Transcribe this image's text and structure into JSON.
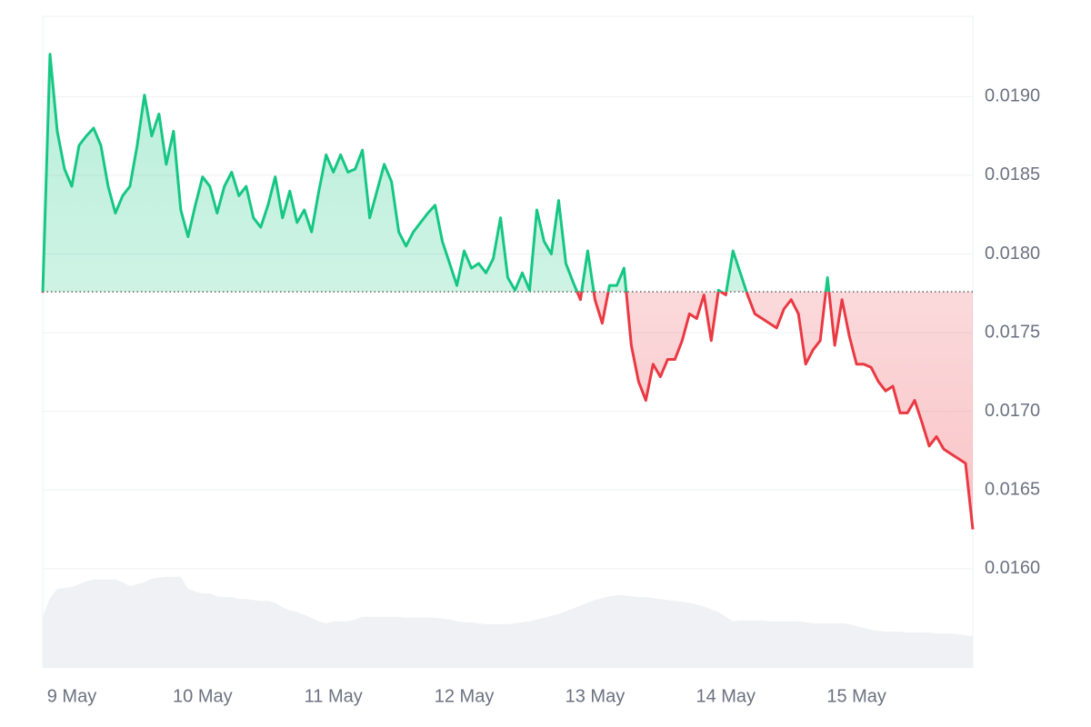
{
  "chart_data": {
    "type": "line",
    "categories": [
      null,
      null,
      null,
      null,
      "9 May",
      null,
      null,
      null,
      null,
      null,
      null,
      null,
      null,
      null,
      null,
      null,
      null,
      null,
      null,
      null,
      null,
      null,
      "10 May",
      null,
      null,
      null,
      null,
      null,
      null,
      null,
      null,
      null,
      null,
      null,
      null,
      null,
      null,
      null,
      null,
      null,
      "11 May",
      null,
      null,
      null,
      null,
      null,
      null,
      null,
      null,
      null,
      null,
      null,
      null,
      null,
      null,
      null,
      null,
      null,
      "12 May",
      null,
      null,
      null,
      null,
      null,
      null,
      null,
      null,
      null,
      null,
      null,
      null,
      null,
      null,
      null,
      null,
      null,
      "13 May",
      null,
      null,
      null,
      null,
      null,
      null,
      null,
      null,
      null,
      null,
      null,
      null,
      null,
      null,
      null,
      null,
      null,
      "14 May",
      null,
      null,
      null,
      null,
      null,
      null,
      null,
      null,
      null,
      null,
      null,
      null,
      null,
      null,
      null,
      null,
      null,
      "15 May",
      null,
      null,
      null,
      null,
      null,
      null,
      null,
      null,
      null,
      null,
      null,
      null,
      null,
      null,
      null,
      null
    ],
    "series": [
      {
        "name": "Price",
        "color": "#16c784",
        "below_color": "#ea3943",
        "values": [
          0.017754,
          0.01927,
          0.01878,
          0.01854,
          0.01843,
          0.01869,
          0.01875,
          0.0188,
          0.01869,
          0.01843,
          0.01826,
          0.01837,
          0.01843,
          0.01869,
          0.01901,
          0.01875,
          0.01889,
          0.01857,
          0.01878,
          0.01828,
          0.01811,
          0.01831,
          0.01849,
          0.01843,
          0.01826,
          0.01843,
          0.01852,
          0.01837,
          0.01843,
          0.01823,
          0.01817,
          0.01831,
          0.01849,
          0.01823,
          0.0184,
          0.0182,
          0.01828,
          0.01814,
          0.0184,
          0.01863,
          0.01852,
          0.01863,
          0.01852,
          0.01854,
          0.01866,
          0.01823,
          0.0184,
          0.01857,
          0.01846,
          0.01814,
          0.01805,
          0.01814,
          0.0182,
          0.01826,
          0.01831,
          0.01808,
          0.01794,
          0.0178,
          0.01802,
          0.01791,
          0.01794,
          0.01788,
          0.01797,
          0.01823,
          0.01785,
          0.01777,
          0.01788,
          0.01777,
          0.01828,
          0.01808,
          0.018,
          0.01834,
          0.01794,
          0.01782,
          0.01771,
          0.01802,
          0.01771,
          0.01756,
          0.0178,
          0.0178,
          0.01791,
          0.01742,
          0.01719,
          0.01707,
          0.0173,
          0.01722,
          0.01733,
          0.01733,
          0.01745,
          0.01762,
          0.01759,
          0.01774,
          0.01745,
          0.01777,
          0.01774,
          0.01802,
          0.01788,
          0.01774,
          0.01762,
          0.01759,
          0.01756,
          0.01753,
          0.01765,
          0.01771,
          0.01762,
          0.0173,
          0.01739,
          0.01745,
          0.01785,
          0.01742,
          0.01771,
          0.01748,
          0.0173,
          0.0173,
          0.01728,
          0.01719,
          0.01713,
          0.01716,
          0.01699,
          0.01699,
          0.01707,
          0.01693,
          0.01678,
          0.01684,
          0.01676,
          0.01673,
          0.0167,
          0.01667,
          0.01625
        ]
      },
      {
        "name": "Volume",
        "color": "#eff1f4",
        "axis": "y2",
        "values": [
          55,
          75,
          85,
          86,
          87,
          90,
          93,
          95,
          95,
          95,
          95,
          92,
          88,
          90,
          92,
          96,
          97,
          98,
          98,
          98,
          85,
          82,
          80,
          80,
          77,
          76,
          76,
          74,
          74,
          73,
          72,
          72,
          70,
          65,
          62,
          60,
          57,
          54,
          50,
          48,
          50,
          50,
          50,
          52,
          55,
          55,
          55,
          55,
          55,
          55,
          54,
          54,
          54,
          54,
          54,
          53,
          52,
          50,
          49,
          49,
          48,
          47,
          47,
          47,
          47,
          48,
          49,
          50,
          52,
          54,
          56,
          58,
          61,
          64,
          67,
          70,
          73,
          75,
          77,
          78,
          78,
          77,
          76,
          76,
          75,
          74,
          73,
          72,
          71,
          70,
          68,
          66,
          63,
          60,
          55,
          50,
          51,
          51,
          51,
          51,
          50,
          50,
          50,
          50,
          50,
          49,
          48,
          48,
          48,
          48,
          48,
          47,
          45,
          43,
          41,
          40,
          39,
          39,
          39,
          38,
          38,
          38,
          38,
          37,
          37,
          37,
          36,
          35,
          34
        ]
      }
    ],
    "baseline": 0.01776,
    "ylim": [
      0.01537,
      0.01951
    ],
    "yticks": [
      {
        "value": 0.016,
        "label": "0.0160"
      },
      0.0165,
      {
        "value": 0.017,
        "label": "0.0170"
      },
      0.0175,
      {
        "value": 0.018,
        "label": "0.0180"
      },
      0.0185,
      {
        "value": 0.019,
        "label": "0.0190"
      }
    ],
    "y2lim": [
      0,
      700
    ],
    "grid": true
  }
}
